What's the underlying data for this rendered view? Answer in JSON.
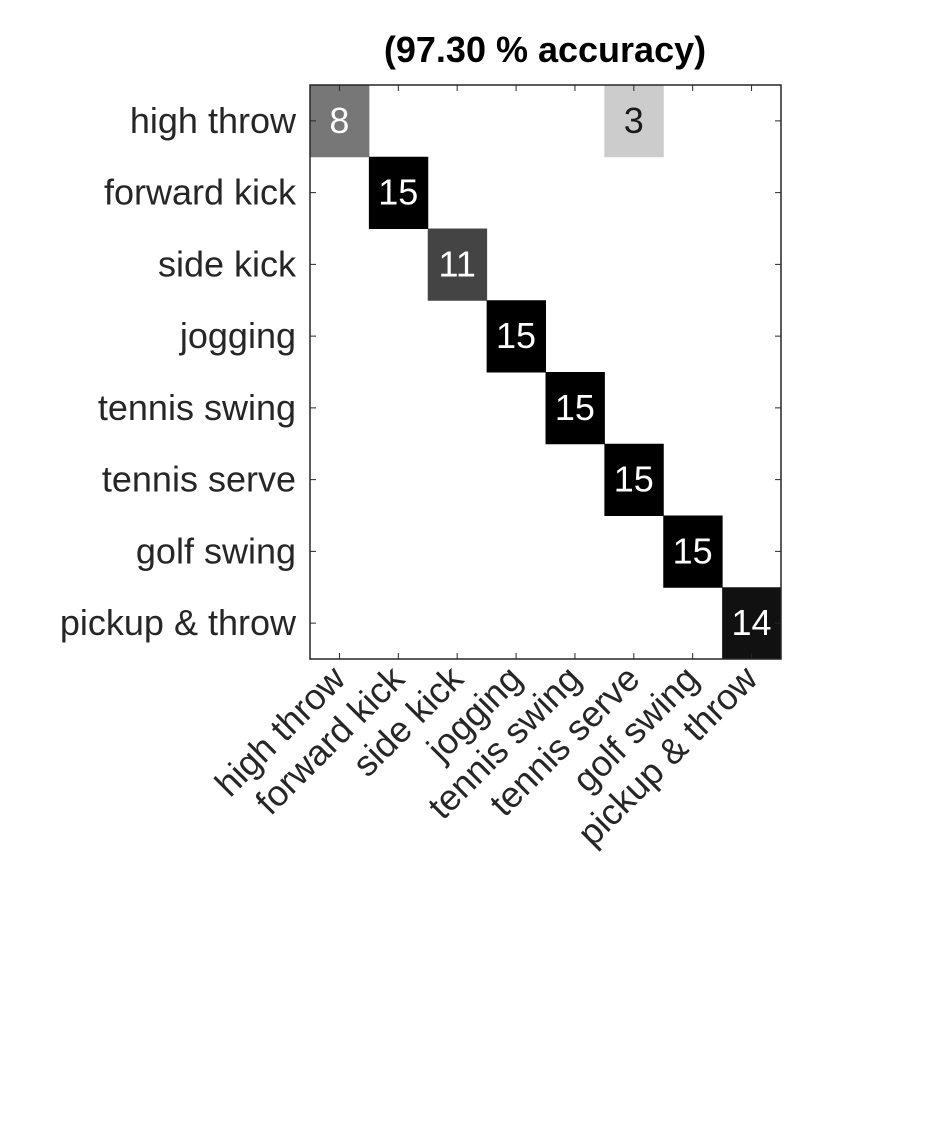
{
  "chart_data": {
    "type": "heatmap",
    "title": "(97.30 % accuracy)",
    "rows": [
      "high throw",
      "forward kick",
      "side kick",
      "jogging",
      "tennis swing",
      "tennis serve",
      "golf swing",
      "pickup & throw"
    ],
    "cols": [
      "high throw",
      "forward kick",
      "side kick",
      "jogging",
      "tennis swing",
      "tennis serve",
      "golf swing",
      "pickup & throw"
    ],
    "values": [
      [
        8,
        0,
        0,
        0,
        0,
        3,
        0,
        0
      ],
      [
        0,
        15,
        0,
        0,
        0,
        0,
        0,
        0
      ],
      [
        0,
        0,
        11,
        0,
        0,
        0,
        0,
        0
      ],
      [
        0,
        0,
        0,
        15,
        0,
        0,
        0,
        0
      ],
      [
        0,
        0,
        0,
        0,
        15,
        0,
        0,
        0
      ],
      [
        0,
        0,
        0,
        0,
        0,
        15,
        0,
        0
      ],
      [
        0,
        0,
        0,
        0,
        0,
        0,
        15,
        0
      ],
      [
        0,
        0,
        0,
        0,
        0,
        0,
        0,
        14
      ]
    ],
    "colormap": "gray-reversed",
    "cell_color_max": 15,
    "show_zero_labels": false,
    "grid": false,
    "colors": {
      "axis": "#262626",
      "background": "#ffffff"
    }
  }
}
